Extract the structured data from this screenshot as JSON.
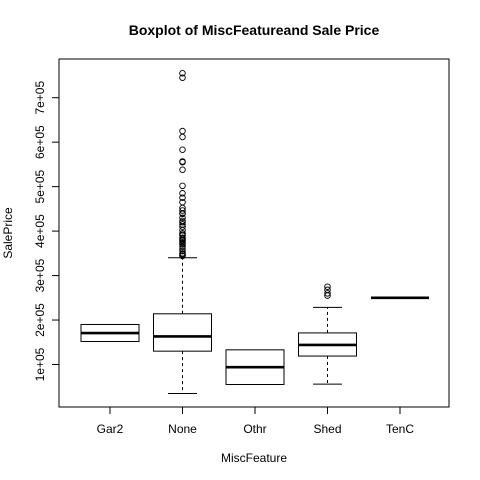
{
  "chart_data": {
    "type": "boxplot",
    "title": "Boxplot of MiscFeatureand Sale Price",
    "xlabel": "MiscFeature",
    "ylabel": "SalePrice",
    "ylim": [
      10000,
      780000
    ],
    "yticks": [
      100000,
      200000,
      300000,
      400000,
      500000,
      600000,
      700000
    ],
    "ytick_labels": [
      "1e+05",
      "2e+05",
      "3e+05",
      "4e+05",
      "5e+05",
      "6e+05",
      "7e+05"
    ],
    "categories": [
      "Gar2",
      "None",
      "Othr",
      "Shed",
      "TenC"
    ],
    "boxes": [
      {
        "category": "Gar2",
        "whisker_low": 151700,
        "q1": 151700,
        "median": 170750,
        "q3": 190000,
        "whisker_high": 190000,
        "outliers": []
      },
      {
        "category": "None",
        "whisker_low": 34900,
        "q1": 130000,
        "median": 163000,
        "q3": 214000,
        "whisker_high": 340000,
        "outliers": [
          344000,
          345000,
          348000,
          350000,
          355000,
          360000,
          365000,
          370000,
          372500,
          375000,
          378500,
          380000,
          383000,
          385000,
          390000,
          392000,
          395000,
          402000,
          410000,
          415000,
          420000,
          423000,
          430000,
          438780,
          440000,
          446261,
          451950,
          465000,
          475000,
          485000,
          501837,
          538000,
          555000,
          556581,
          582933,
          611657,
          625000,
          745000,
          755000
        ]
      },
      {
        "category": "Othr",
        "whisker_low": 55000,
        "q1": 55000,
        "median": 94000,
        "q3": 133000,
        "whisker_high": 133000,
        "outliers": []
      },
      {
        "category": "Shed",
        "whisker_low": 55993,
        "q1": 119000,
        "median": 144000,
        "q3": 171000,
        "whisker_high": 228500,
        "outliers": [
          255000,
          260000,
          268000,
          274970
        ]
      },
      {
        "category": "TenC",
        "whisker_low": 250000,
        "q1": 250000,
        "median": 250000,
        "q3": 250000,
        "whisker_high": 250000,
        "outliers": []
      }
    ]
  }
}
